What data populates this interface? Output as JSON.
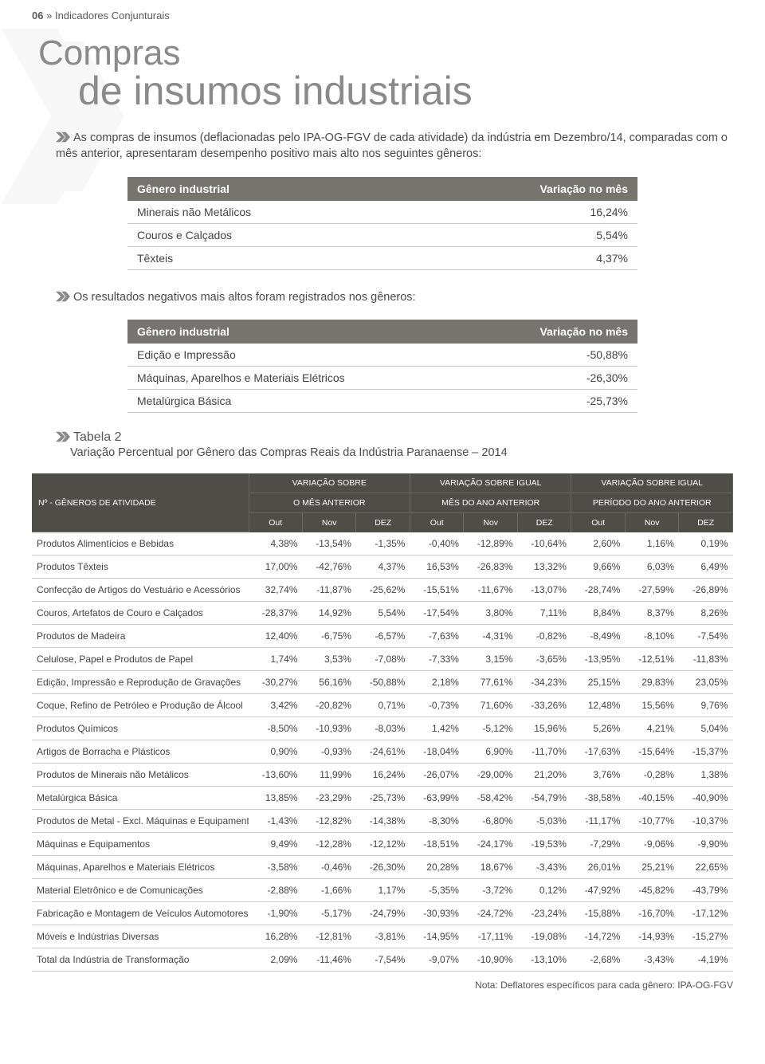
{
  "header": {
    "page_num": "06",
    "marker": "»",
    "section": "Indicadores Conjunturais"
  },
  "title": {
    "line1": "Compras",
    "line2": "de insumos industriais"
  },
  "intro": "As compras de insumos (deflacionadas pelo IPA-OG-FGV de cada atividade) da indústria em Dezembro/14, comparadas com o mês anterior, apresentaram desempenho positivo mais alto nos seguintes gêneros:",
  "mini1": {
    "h1": "Gênero industrial",
    "h2": "Variação no mês",
    "rows": [
      {
        "name": "Minerais não Metálicos",
        "val": "16,24%"
      },
      {
        "name": "Couros e Calçados",
        "val": "5,54%"
      },
      {
        "name": "Têxteis",
        "val": "4,37%"
      }
    ]
  },
  "mid": "Os resultados negativos mais altos foram registrados nos gêneros:",
  "mini2": {
    "h1": "Gênero industrial",
    "h2": "Variação no mês",
    "rows": [
      {
        "name": "Edição e Impressão",
        "val": "-50,88%"
      },
      {
        "name": "Máquinas, Aparelhos e Materiais Elétricos",
        "val": "-26,30%"
      },
      {
        "name": "Metalúrgica Básica",
        "val": "-25,73%"
      }
    ]
  },
  "tabela": {
    "label": "Tabela 2",
    "sub": "Variação Percentual por Gênero das Compras Reais da Indústria Paranaense – 2014"
  },
  "big": {
    "col0": "Nº - GÊNEROS DE ATIVIDADE",
    "g1_l1": "VARIAÇÃO SOBRE",
    "g1_l2": "O MÊS ANTERIOR",
    "g2_l1": "VARIAÇÃO SOBRE IGUAL",
    "g2_l2": "MÊS DO ANO ANTERIOR",
    "g3_l1": "VARIAÇÃO SOBRE IGUAL",
    "g3_l2": "PERÍODO DO ANO ANTERIOR",
    "m1": "Out",
    "m2": "Nov",
    "m3": "DEZ",
    "rows": [
      {
        "name": "Produtos Alimentícios e Bebidas",
        "v": [
          "4,38%",
          "-13,54%",
          "-1,35%",
          "-0,40%",
          "-12,89%",
          "-10,64%",
          "2,60%",
          "1,16%",
          "0,19%"
        ]
      },
      {
        "name": "Produtos Têxteis",
        "v": [
          "17,00%",
          "-42,76%",
          "4,37%",
          "16,53%",
          "-26,83%",
          "13,32%",
          "9,66%",
          "6,03%",
          "6,49%"
        ]
      },
      {
        "name": "Confecção de Artigos do Vestuário e Acessórios",
        "v": [
          "32,74%",
          "-11,87%",
          "-25,62%",
          "-15,51%",
          "-11,67%",
          "-13,07%",
          "-28,74%",
          "-27,59%",
          "-26,89%"
        ]
      },
      {
        "name": "Couros, Artefatos de Couro e Calçados",
        "v": [
          "-28,37%",
          "14,92%",
          "5,54%",
          "-17,54%",
          "3,80%",
          "7,11%",
          "8,84%",
          "8,37%",
          "8,26%"
        ]
      },
      {
        "name": "Produtos de Madeira",
        "v": [
          "12,40%",
          "-6,75%",
          "-6,57%",
          "-7,63%",
          "-4,31%",
          "-0,82%",
          "-8,49%",
          "-8,10%",
          "-7,54%"
        ]
      },
      {
        "name": "Celulose, Papel e Produtos de Papel",
        "v": [
          "1,74%",
          "3,53%",
          "-7,08%",
          "-7,33%",
          "3,15%",
          "-3,65%",
          "-13,95%",
          "-12,51%",
          "-11,83%"
        ]
      },
      {
        "name": "Edição, Impressão e Reprodução de Gravações",
        "v": [
          "-30,27%",
          "56,16%",
          "-50,88%",
          "2,18%",
          "77,61%",
          "-34,23%",
          "25,15%",
          "29,83%",
          "23,05%"
        ]
      },
      {
        "name": "Coque, Refino de Petróleo e Produção de Álcool",
        "v": [
          "3,42%",
          "-20,82%",
          "0,71%",
          "-0,73%",
          "71,60%",
          "-33,26%",
          "12,48%",
          "15,56%",
          "9,76%"
        ]
      },
      {
        "name": "Produtos Químicos",
        "v": [
          "-8,50%",
          "-10,93%",
          "-8,03%",
          "1,42%",
          "-5,12%",
          "15,96%",
          "5,26%",
          "4,21%",
          "5,04%"
        ]
      },
      {
        "name": "Artigos de Borracha e Plásticos",
        "v": [
          "0,90%",
          "-0,93%",
          "-24,61%",
          "-18,04%",
          "6,90%",
          "-11,70%",
          "-17,63%",
          "-15,64%",
          "-15,37%"
        ]
      },
      {
        "name": "Produtos de Minerais não Metálicos",
        "v": [
          "-13,60%",
          "11,99%",
          "16,24%",
          "-26,07%",
          "-29,00%",
          "21,20%",
          "3,76%",
          "-0,28%",
          "1,38%"
        ]
      },
      {
        "name": "Metalúrgica Básica",
        "v": [
          "13,85%",
          "-23,29%",
          "-25,73%",
          "-63,99%",
          "-58,42%",
          "-54,79%",
          "-38,58%",
          "-40,15%",
          "-40,90%"
        ]
      },
      {
        "name": "Produtos de Metal - Excl. Máquinas e Equipamentos",
        "v": [
          "-1,43%",
          "-12,82%",
          "-14,38%",
          "-8,30%",
          "-6,80%",
          "-5,03%",
          "-11,17%",
          "-10,77%",
          "-10,37%"
        ]
      },
      {
        "name": "Máquinas e Equipamentos",
        "v": [
          "9,49%",
          "-12,28%",
          "-12,12%",
          "-18,51%",
          "-24,17%",
          "-19,53%",
          "-7,29%",
          "-9,06%",
          "-9,90%"
        ]
      },
      {
        "name": "Máquinas, Aparelhos e Materiais Elétricos",
        "v": [
          "-3,58%",
          "-0,46%",
          "-26,30%",
          "20,28%",
          "18,67%",
          "-3,43%",
          "26,01%",
          "25,21%",
          "22,65%"
        ]
      },
      {
        "name": "Material Eletrônico e de Comunicações",
        "v": [
          "-2,88%",
          "-1,66%",
          "1,17%",
          "-5,35%",
          "-3,72%",
          "0,12%",
          "-47,92%",
          "-45,82%",
          "-43,79%"
        ]
      },
      {
        "name": "Fabricação e Montagem de Veículos Automotores",
        "v": [
          "-1,90%",
          "-5,17%",
          "-24,79%",
          "-30,93%",
          "-24,72%",
          "-23,24%",
          "-15,88%",
          "-16,70%",
          "-17,12%"
        ]
      },
      {
        "name": "Móveis e Indústrias Diversas",
        "v": [
          "16,28%",
          "-12,81%",
          "-3,81%",
          "-14,95%",
          "-17,11%",
          "-19,08%",
          "-14,72%",
          "-14,93%",
          "-15,27%"
        ]
      },
      {
        "name": "Total da Indústria de Transformação",
        "v": [
          "2,09%",
          "-11,46%",
          "-7,54%",
          "-9,07%",
          "-10,90%",
          "-13,10%",
          "-2,68%",
          "-3,43%",
          "-4,19%"
        ]
      }
    ]
  },
  "note": "Nota: Deflatores específicos para cada gênero: IPA-OG-FGV",
  "colors": {
    "chev": "#8a8a8a",
    "thead_dark": "#4f4d48",
    "thead_mid": "#76746f"
  }
}
